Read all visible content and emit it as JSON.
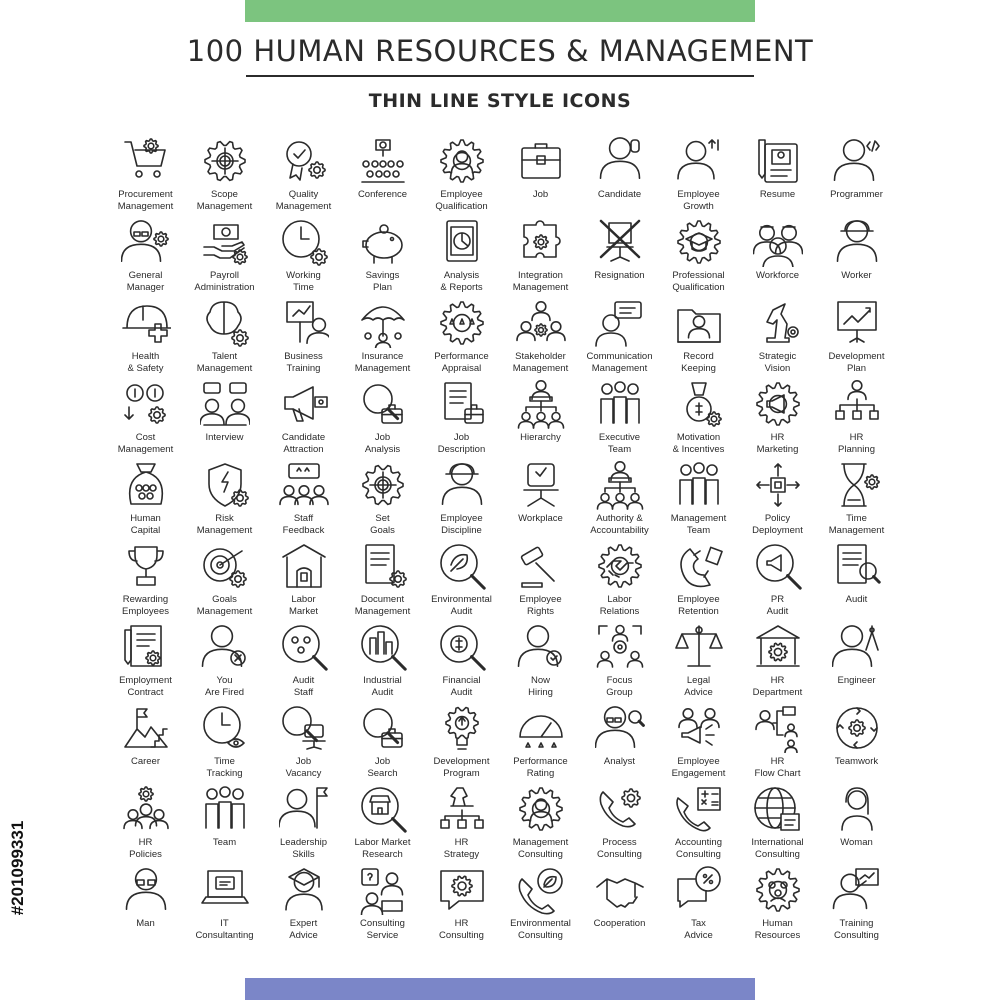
{
  "header": {
    "title": "100 HUMAN RESOURCES & MANAGEMENT",
    "subtitle": "THIN LINE STYLE ICONS"
  },
  "stock_id": "#201099331",
  "colors": {
    "top_bar": "#7cc47f",
    "bottom_bar": "#7b86c8",
    "line": "#2b2b2b"
  },
  "icons": [
    {
      "name": "cart",
      "lines": [
        "Procurement",
        "Management"
      ]
    },
    {
      "name": "gear-target",
      "lines": [
        "Scope",
        "Management"
      ]
    },
    {
      "name": "gear-badge",
      "lines": [
        "Quality",
        "Management"
      ]
    },
    {
      "name": "conference",
      "lines": [
        "Conference"
      ]
    },
    {
      "name": "gear-person",
      "lines": [
        "Employee",
        "Qualification"
      ]
    },
    {
      "name": "briefcase",
      "lines": [
        "Job"
      ]
    },
    {
      "name": "person",
      "lines": [
        "Candidate"
      ]
    },
    {
      "name": "person-growth",
      "lines": [
        "Employee",
        "Growth"
      ]
    },
    {
      "name": "document",
      "lines": [
        "Resume"
      ]
    },
    {
      "name": "person-code",
      "lines": [
        "Programmer"
      ]
    },
    {
      "name": "person-gear",
      "lines": [
        "General",
        "Manager"
      ]
    },
    {
      "name": "hand-money",
      "lines": [
        "Payroll",
        "Administration"
      ]
    },
    {
      "name": "clock-gear",
      "lines": [
        "Working",
        "Time"
      ]
    },
    {
      "name": "piggy-bank",
      "lines": [
        "Savings",
        "Plan"
      ]
    },
    {
      "name": "report",
      "lines": [
        "Analysis",
        "& Reports"
      ]
    },
    {
      "name": "puzzle-gear",
      "lines": [
        "Integration",
        "Management"
      ]
    },
    {
      "name": "chair-cross",
      "lines": [
        "Resignation"
      ]
    },
    {
      "name": "gear-cap",
      "lines": [
        "Professional",
        "Qualification"
      ]
    },
    {
      "name": "workforce",
      "lines": [
        "Workforce"
      ]
    },
    {
      "name": "worker",
      "lines": [
        "Worker"
      ]
    },
    {
      "name": "helmet-cross",
      "lines": [
        "Health",
        "& Safety"
      ]
    },
    {
      "name": "brain-gear",
      "lines": [
        "Talent",
        "Management"
      ]
    },
    {
      "name": "presentation",
      "lines": [
        "Business",
        "Training"
      ]
    },
    {
      "name": "umbrella",
      "lines": [
        "Insurance",
        "Management"
      ]
    },
    {
      "name": "gear-stars",
      "lines": [
        "Performance",
        "Appraisal"
      ]
    },
    {
      "name": "stakeholders",
      "lines": [
        "Stakeholder",
        "Management"
      ]
    },
    {
      "name": "person-chat",
      "lines": [
        "Communication",
        "Management"
      ]
    },
    {
      "name": "folder",
      "lines": [
        "Record",
        "Keeping"
      ]
    },
    {
      "name": "chess-knight",
      "lines": [
        "Strategic",
        "Vision"
      ]
    },
    {
      "name": "board-chart",
      "lines": [
        "Development",
        "Plan"
      ]
    },
    {
      "name": "coins-gear",
      "lines": [
        "Cost",
        "Management"
      ]
    },
    {
      "name": "interview",
      "lines": [
        "Interview"
      ]
    },
    {
      "name": "megaphone",
      "lines": [
        "Candidate",
        "Attraction"
      ]
    },
    {
      "name": "magnifier-briefcase",
      "lines": [
        "Job",
        "Analysis"
      ]
    },
    {
      "name": "document-briefcase",
      "lines": [
        "Job",
        "Description"
      ]
    },
    {
      "name": "hierarchy",
      "lines": [
        "Hierarchy"
      ]
    },
    {
      "name": "team",
      "lines": [
        "Executive",
        "Team"
      ]
    },
    {
      "name": "medal",
      "lines": [
        "Motivation",
        "& Incentives"
      ]
    },
    {
      "name": "gear-megaphone",
      "lines": [
        "HR",
        "Marketing"
      ]
    },
    {
      "name": "org-chart",
      "lines": [
        "HR",
        "Planning"
      ]
    },
    {
      "name": "bag-people",
      "lines": [
        "Human",
        "Capital"
      ]
    },
    {
      "name": "shield-gear",
      "lines": [
        "Risk",
        "Management"
      ]
    },
    {
      "name": "feedback",
      "lines": [
        "Staff",
        "Feedback"
      ]
    },
    {
      "name": "gear-target",
      "lines": [
        "Set",
        "Goals"
      ]
    },
    {
      "name": "worker",
      "lines": [
        "Employee",
        "Discipline"
      ]
    },
    {
      "name": "office-chair",
      "lines": [
        "Workplace"
      ]
    },
    {
      "name": "hierarchy",
      "lines": [
        "Authority &",
        "Accountability"
      ]
    },
    {
      "name": "team",
      "lines": [
        "Management",
        "Team"
      ]
    },
    {
      "name": "deployment",
      "lines": [
        "Policy",
        "Deployment"
      ]
    },
    {
      "name": "hourglass-gear",
      "lines": [
        "Time",
        "Management"
      ]
    },
    {
      "name": "trophy",
      "lines": [
        "Rewarding",
        "Employees"
      ]
    },
    {
      "name": "target-gear",
      "lines": [
        "Goals",
        "Management"
      ]
    },
    {
      "name": "market",
      "lines": [
        "Labor",
        "Market"
      ]
    },
    {
      "name": "document-gear",
      "lines": [
        "Document",
        "Management"
      ]
    },
    {
      "name": "magnifier-leaf",
      "lines": [
        "Environmental",
        "Audit"
      ]
    },
    {
      "name": "gavel",
      "lines": [
        "Employee",
        "Rights"
      ]
    },
    {
      "name": "gear-handshake",
      "lines": [
        "Labor",
        "Relations"
      ]
    },
    {
      "name": "magnet",
      "lines": [
        "Employee",
        "Retention"
      ]
    },
    {
      "name": "magnifier-megaphone",
      "lines": [
        "PR",
        "Audit"
      ]
    },
    {
      "name": "document-magnifier",
      "lines": [
        "Audit"
      ]
    },
    {
      "name": "contract",
      "lines": [
        "Employment",
        "Contract"
      ]
    },
    {
      "name": "person-cross",
      "lines": [
        "You",
        "Are Fired"
      ]
    },
    {
      "name": "magnifier-people",
      "lines": [
        "Audit",
        "Staff"
      ]
    },
    {
      "name": "magnifier-building",
      "lines": [
        "Industrial",
        "Audit"
      ]
    },
    {
      "name": "magnifier-dollar",
      "lines": [
        "Financial",
        "Audit"
      ]
    },
    {
      "name": "person-check",
      "lines": [
        "Now",
        "Hiring"
      ]
    },
    {
      "name": "focus-group",
      "lines": [
        "Focus",
        "Group"
      ]
    },
    {
      "name": "scales",
      "lines": [
        "Legal",
        "Advice"
      ]
    },
    {
      "name": "building-gear",
      "lines": [
        "HR",
        "Department"
      ]
    },
    {
      "name": "person-compass",
      "lines": [
        "Engineer"
      ]
    },
    {
      "name": "career",
      "lines": [
        "Career"
      ]
    },
    {
      "name": "clock-eye",
      "lines": [
        "Time",
        "Tracking"
      ]
    },
    {
      "name": "magnifier-chair",
      "lines": [
        "Job",
        "Vacancy"
      ]
    },
    {
      "name": "magnifier-briefcase",
      "lines": [
        "Job",
        "Search"
      ]
    },
    {
      "name": "lightbulb-gear",
      "lines": [
        "Development",
        "Program"
      ]
    },
    {
      "name": "gauge",
      "lines": [
        "Performance",
        "Rating"
      ]
    },
    {
      "name": "person-magnifier",
      "lines": [
        "Analyst"
      ]
    },
    {
      "name": "engagement",
      "lines": [
        "Employee",
        "Engagement"
      ]
    },
    {
      "name": "flow-chart",
      "lines": [
        "HR",
        "Flow Chart"
      ]
    },
    {
      "name": "teamwork",
      "lines": [
        "Teamwork"
      ]
    },
    {
      "name": "people-gear",
      "lines": [
        "HR",
        "Policies"
      ]
    },
    {
      "name": "team",
      "lines": [
        "Team"
      ]
    },
    {
      "name": "person-flag",
      "lines": [
        "Leadership",
        "Skills"
      ]
    },
    {
      "name": "magnifier-shop",
      "lines": [
        "Labor Market",
        "Research"
      ]
    },
    {
      "name": "chess-hierarchy",
      "lines": [
        "HR",
        "Strategy"
      ]
    },
    {
      "name": "gear-person",
      "lines": [
        "Management",
        "Consulting"
      ]
    },
    {
      "name": "phone-gear",
      "lines": [
        "Process",
        "Consulting"
      ]
    },
    {
      "name": "phone-calc",
      "lines": [
        "Accounting",
        "Consulting"
      ]
    },
    {
      "name": "globe-document",
      "lines": [
        "International",
        "Consulting"
      ]
    },
    {
      "name": "woman",
      "lines": [
        "Woman"
      ]
    },
    {
      "name": "person-glasses",
      "lines": [
        "Man"
      ]
    },
    {
      "name": "laptop-chat",
      "lines": [
        "IT",
        "Consultanting"
      ]
    },
    {
      "name": "person-cap",
      "lines": [
        "Expert",
        "Advice"
      ]
    },
    {
      "name": "service",
      "lines": [
        "Consulting",
        "Service"
      ]
    },
    {
      "name": "chat-gear",
      "lines": [
        "HR",
        "Consulting"
      ]
    },
    {
      "name": "phone-leaf",
      "lines": [
        "Environmental",
        "Consulting"
      ]
    },
    {
      "name": "handshake",
      "lines": [
        "Cooperation"
      ]
    },
    {
      "name": "chat-percent",
      "lines": [
        "Tax",
        "Advice"
      ]
    },
    {
      "name": "gear-people",
      "lines": [
        "Human",
        "Resources"
      ]
    },
    {
      "name": "person-board",
      "lines": [
        "Training",
        "Consulting"
      ]
    }
  ]
}
